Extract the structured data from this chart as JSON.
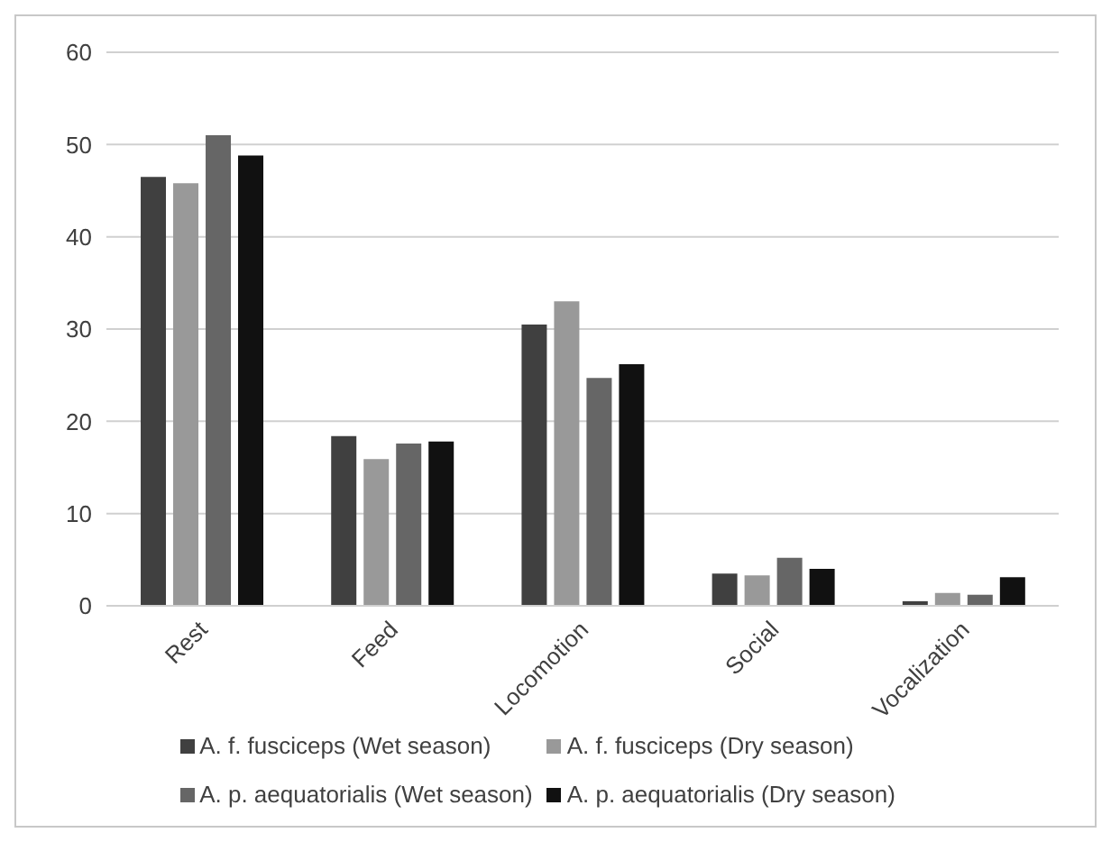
{
  "chart_data": {
    "type": "bar",
    "categories": [
      "Rest",
      "Feed",
      "Locomotion",
      "Social",
      "Vocalization"
    ],
    "series": [
      {
        "name": "A. f. fusciceps (Wet season)",
        "color": "#404040",
        "values": [
          46.5,
          18.4,
          30.5,
          3.5,
          0.5
        ]
      },
      {
        "name": "A. f. fusciceps (Dry season)",
        "color": "#999999",
        "values": [
          45.8,
          15.9,
          33.0,
          3.3,
          1.4
        ]
      },
      {
        "name": "A. p. aequatorialis (Wet season)",
        "color": "#666666",
        "values": [
          51.0,
          17.6,
          24.7,
          5.2,
          1.2
        ]
      },
      {
        "name": "A. p. aequatorialis (Dry season)",
        "color": "#111111",
        "values": [
          48.8,
          17.8,
          26.2,
          4.0,
          3.1
        ]
      }
    ],
    "ylim": [
      0,
      60
    ],
    "yticks": [
      0,
      10,
      20,
      30,
      40,
      50,
      60
    ],
    "grid": "y",
    "legend": "bottom"
  }
}
